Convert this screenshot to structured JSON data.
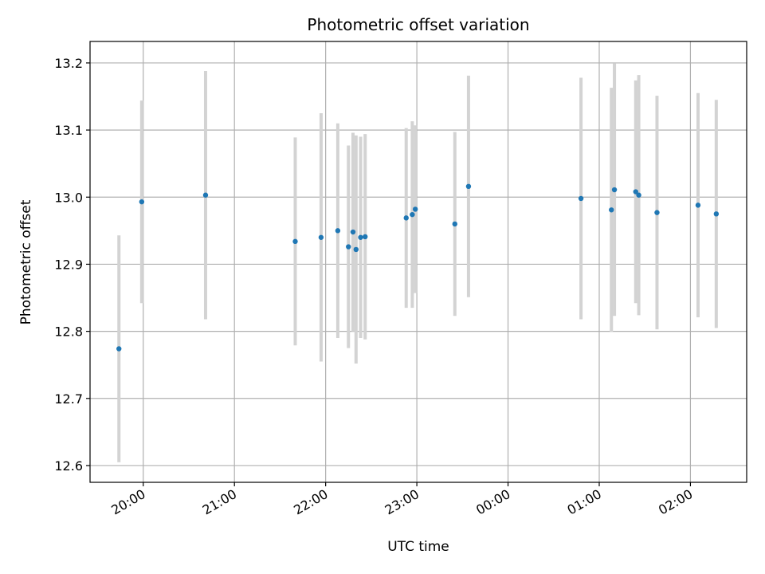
{
  "chart_data": {
    "type": "scatter",
    "title": "Photometric offset variation",
    "xlabel": "UTC time",
    "ylabel": "Photometric offset",
    "x_ticks": [
      "20:00",
      "21:00",
      "22:00",
      "23:00",
      "00:00",
      "01:00",
      "02:00"
    ],
    "y_ticks": [
      "12.6",
      "12.7",
      "12.8",
      "12.9",
      "13.0",
      "13.1",
      "13.2"
    ],
    "xlim": [
      "19:25",
      "02:37"
    ],
    "ylim": [
      12.575,
      13.232
    ],
    "grid": true,
    "colors": {
      "marker": "#1f77b4",
      "errorbar": "#d3d3d3",
      "grid": "#b0b0b0"
    },
    "points": [
      {
        "x": "19:44",
        "y": 12.774,
        "err": 0.169
      },
      {
        "x": "19:59",
        "y": 12.993,
        "err": 0.151
      },
      {
        "x": "20:41",
        "y": 13.003,
        "err": 0.185
      },
      {
        "x": "21:40",
        "y": 12.934,
        "err": 0.155
      },
      {
        "x": "21:57",
        "y": 12.94,
        "err": 0.185
      },
      {
        "x": "22:08",
        "y": 12.95,
        "err": 0.16
      },
      {
        "x": "22:15",
        "y": 12.926,
        "err": 0.151
      },
      {
        "x": "22:18",
        "y": 12.948,
        "err": 0.148
      },
      {
        "x": "22:20",
        "y": 12.922,
        "err": 0.17
      },
      {
        "x": "22:23",
        "y": 12.94,
        "err": 0.15
      },
      {
        "x": "22:26",
        "y": 12.941,
        "err": 0.153
      },
      {
        "x": "22:53",
        "y": 12.969,
        "err": 0.134
      },
      {
        "x": "22:57",
        "y": 12.974,
        "err": 0.139
      },
      {
        "x": "22:59",
        "y": 12.982,
        "err": 0.125
      },
      {
        "x": "23:25",
        "y": 12.96,
        "err": 0.137
      },
      {
        "x": "23:34",
        "y": 13.016,
        "err": 0.165
      },
      {
        "x": "00:48",
        "y": 12.998,
        "err": 0.18
      },
      {
        "x": "01:08",
        "y": 12.981,
        "err": 0.182
      },
      {
        "x": "01:10",
        "y": 13.011,
        "err": 0.188
      },
      {
        "x": "01:24",
        "y": 13.008,
        "err": 0.166
      },
      {
        "x": "01:26",
        "y": 13.003,
        "err": 0.179
      },
      {
        "x": "01:38",
        "y": 12.977,
        "err": 0.174
      },
      {
        "x": "02:05",
        "y": 12.988,
        "err": 0.167
      },
      {
        "x": "02:17",
        "y": 12.975,
        "err": 0.17
      }
    ]
  }
}
